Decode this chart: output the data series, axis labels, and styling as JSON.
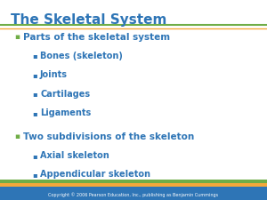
{
  "title": "The Skeletal System",
  "title_color": "#2e75b6",
  "title_fontsize": 11,
  "bg_color": "#ffffff",
  "bullet_color_l1": "#70ad47",
  "bullet_color_l2": "#2e75b6",
  "text_color_l1": "#2e75b6",
  "text_color_l2": "#2e75b6",
  "lines": [
    {
      "level": 1,
      "text": "Parts of the skeletal system"
    },
    {
      "level": 2,
      "text": "Bones (skeleton)"
    },
    {
      "level": 2,
      "text": "Joints"
    },
    {
      "level": 2,
      "text": "Cartilages"
    },
    {
      "level": 2,
      "text": "Ligaments"
    },
    {
      "level": 1,
      "text": "Two subdivisions of the skeleton"
    },
    {
      "level": 2,
      "text": "Axial skeleton"
    },
    {
      "level": 2,
      "text": "Appendicular skeleton"
    }
  ],
  "footer_text": "Copyright © 2006 Pearson Education, Inc., publishing as Benjamin Cummings",
  "footer_bg": "#2e75b6",
  "footer_text_color": "#ffffff",
  "stripe_colors": [
    "#70ad47",
    "#f4a83a",
    "#2e75b6"
  ],
  "title_underline_color": "#70ad47",
  "title_underline_color2": "#f4a83a"
}
